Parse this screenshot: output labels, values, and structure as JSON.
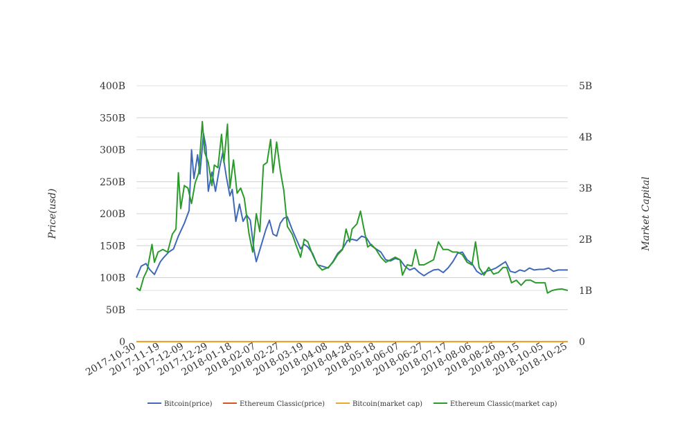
{
  "chart_data": {
    "type": "line",
    "ylabel_left": "Price(usd)",
    "ylabel_right": "Market Capital",
    "x_ticks": [
      "2017-10-30",
      "2017-11-19",
      "2017-12-09",
      "2017-12-29",
      "2018-01-18",
      "2018-02-07",
      "2018-02-27",
      "2018-03-19",
      "2018-04-08",
      "2018-04-28",
      "2018-05-18",
      "2018-06-07",
      "2018-06-27",
      "2018-07-17",
      "2018-08-06",
      "2018-08-26",
      "2018-09-15",
      "2018-10-05",
      "2018-10-25"
    ],
    "x_range": [
      "2017-10-30",
      "2018-10-25"
    ],
    "y_left_ticks": [
      "0",
      "50B",
      "100B",
      "150B",
      "200B",
      "250B",
      "300B",
      "350B",
      "400B"
    ],
    "y_left_range": [
      0,
      400
    ],
    "y_right_ticks": [
      "0",
      "1B",
      "2B",
      "3B",
      "4B",
      "5B"
    ],
    "y_right_range": [
      0,
      5
    ],
    "grid": true,
    "legend_position": "bottom",
    "series": [
      {
        "name": "Bitcoin(price)",
        "axis": "left",
        "color": "#3f69b8",
        "points": [
          [
            "2017-10-30",
            100
          ],
          [
            "2017-11-03",
            118
          ],
          [
            "2017-11-07",
            122
          ],
          [
            "2017-11-10",
            113
          ],
          [
            "2017-11-14",
            105
          ],
          [
            "2017-11-19",
            125
          ],
          [
            "2017-11-22",
            132
          ],
          [
            "2017-11-26",
            140
          ],
          [
            "2017-11-30",
            145
          ],
          [
            "2017-12-04",
            165
          ],
          [
            "2017-12-09",
            185
          ],
          [
            "2017-12-13",
            205
          ],
          [
            "2017-12-15",
            300
          ],
          [
            "2017-12-17",
            255
          ],
          [
            "2017-12-20",
            292
          ],
          [
            "2017-12-22",
            262
          ],
          [
            "2017-12-25",
            325
          ],
          [
            "2017-12-27",
            305
          ],
          [
            "2017-12-29",
            235
          ],
          [
            "2018-01-01",
            265
          ],
          [
            "2018-01-04",
            235
          ],
          [
            "2018-01-07",
            268
          ],
          [
            "2018-01-10",
            295
          ],
          [
            "2018-01-13",
            258
          ],
          [
            "2018-01-16",
            228
          ],
          [
            "2018-01-18",
            238
          ],
          [
            "2018-01-21",
            188
          ],
          [
            "2018-01-24",
            215
          ],
          [
            "2018-01-27",
            188
          ],
          [
            "2018-01-30",
            198
          ],
          [
            "2018-02-02",
            190
          ],
          [
            "2018-02-05",
            145
          ],
          [
            "2018-02-07",
            125
          ],
          [
            "2018-02-11",
            150
          ],
          [
            "2018-02-15",
            175
          ],
          [
            "2018-02-18",
            190
          ],
          [
            "2018-02-21",
            168
          ],
          [
            "2018-02-24",
            165
          ],
          [
            "2018-02-27",
            185
          ],
          [
            "2018-03-02",
            193
          ],
          [
            "2018-03-05",
            195
          ],
          [
            "2018-03-09",
            175
          ],
          [
            "2018-03-12",
            162
          ],
          [
            "2018-03-16",
            145
          ],
          [
            "2018-03-19",
            152
          ],
          [
            "2018-03-22",
            148
          ],
          [
            "2018-03-26",
            138
          ],
          [
            "2018-03-30",
            120
          ],
          [
            "2018-04-03",
            118
          ],
          [
            "2018-04-08",
            115
          ],
          [
            "2018-04-12",
            125
          ],
          [
            "2018-04-16",
            138
          ],
          [
            "2018-04-20",
            145
          ],
          [
            "2018-04-24",
            158
          ],
          [
            "2018-04-28",
            160
          ],
          [
            "2018-05-02",
            158
          ],
          [
            "2018-05-06",
            165
          ],
          [
            "2018-05-10",
            162
          ],
          [
            "2018-05-14",
            150
          ],
          [
            "2018-05-18",
            145
          ],
          [
            "2018-05-22",
            140
          ],
          [
            "2018-05-26",
            128
          ],
          [
            "2018-05-30",
            126
          ],
          [
            "2018-06-03",
            130
          ],
          [
            "2018-06-07",
            128
          ],
          [
            "2018-06-11",
            118
          ],
          [
            "2018-06-15",
            112
          ],
          [
            "2018-06-19",
            115
          ],
          [
            "2018-06-23",
            108
          ],
          [
            "2018-06-27",
            103
          ],
          [
            "2018-07-01",
            108
          ],
          [
            "2018-07-05",
            112
          ],
          [
            "2018-07-09",
            113
          ],
          [
            "2018-07-13",
            108
          ],
          [
            "2018-07-17",
            115
          ],
          [
            "2018-07-21",
            125
          ],
          [
            "2018-07-25",
            138
          ],
          [
            "2018-07-29",
            140
          ],
          [
            "2018-08-02",
            128
          ],
          [
            "2018-08-06",
            122
          ],
          [
            "2018-08-10",
            110
          ],
          [
            "2018-08-14",
            105
          ],
          [
            "2018-08-18",
            110
          ],
          [
            "2018-08-22",
            112
          ],
          [
            "2018-08-26",
            115
          ],
          [
            "2018-08-30",
            120
          ],
          [
            "2018-09-03",
            125
          ],
          [
            "2018-09-07",
            110
          ],
          [
            "2018-09-11",
            108
          ],
          [
            "2018-09-15",
            112
          ],
          [
            "2018-09-19",
            110
          ],
          [
            "2018-09-23",
            115
          ],
          [
            "2018-09-27",
            112
          ],
          [
            "2018-10-01",
            113
          ],
          [
            "2018-10-05",
            113
          ],
          [
            "2018-10-09",
            115
          ],
          [
            "2018-10-13",
            110
          ],
          [
            "2018-10-17",
            112
          ],
          [
            "2018-10-21",
            112
          ],
          [
            "2018-10-25",
            112
          ]
        ]
      },
      {
        "name": "Ethereum Classic(price)",
        "axis": "left",
        "color": "#d9531e",
        "points": [
          [
            "2017-10-30",
            0.02
          ],
          [
            "2018-10-25",
            0.01
          ]
        ]
      },
      {
        "name": "Bitcoin(market cap)",
        "axis": "right",
        "color": "#e8a92b",
        "points": [
          [
            "2017-10-30",
            0.001
          ],
          [
            "2018-10-25",
            0.001
          ]
        ]
      },
      {
        "name": "Ethereum Classic(market cap)",
        "axis": "right",
        "color": "#2a9a2a",
        "points": [
          [
            "2017-10-30",
            1.05
          ],
          [
            "2017-11-02",
            1.0
          ],
          [
            "2017-11-05",
            1.25
          ],
          [
            "2017-11-08",
            1.4
          ],
          [
            "2017-11-12",
            1.9
          ],
          [
            "2017-11-14",
            1.55
          ],
          [
            "2017-11-17",
            1.75
          ],
          [
            "2017-11-21",
            1.8
          ],
          [
            "2017-11-25",
            1.75
          ],
          [
            "2017-11-29",
            2.1
          ],
          [
            "2017-12-02",
            2.2
          ],
          [
            "2017-12-04",
            3.3
          ],
          [
            "2017-12-06",
            2.6
          ],
          [
            "2017-12-09",
            3.05
          ],
          [
            "2017-12-12",
            3.0
          ],
          [
            "2017-12-15",
            2.7
          ],
          [
            "2017-12-18",
            3.1
          ],
          [
            "2017-12-21",
            3.3
          ],
          [
            "2017-12-24",
            4.3
          ],
          [
            "2017-12-26",
            3.7
          ],
          [
            "2017-12-29",
            3.5
          ],
          [
            "2018-01-01",
            3.05
          ],
          [
            "2018-01-03",
            3.45
          ],
          [
            "2018-01-06",
            3.4
          ],
          [
            "2018-01-09",
            4.05
          ],
          [
            "2018-01-11",
            3.5
          ],
          [
            "2018-01-14",
            4.25
          ],
          [
            "2018-01-16",
            3.0
          ],
          [
            "2018-01-19",
            3.55
          ],
          [
            "2018-01-22",
            2.9
          ],
          [
            "2018-01-25",
            3.0
          ],
          [
            "2018-01-28",
            2.8
          ],
          [
            "2018-02-01",
            2.1
          ],
          [
            "2018-02-04",
            1.75
          ],
          [
            "2018-02-07",
            2.5
          ],
          [
            "2018-02-10",
            2.15
          ],
          [
            "2018-02-13",
            3.45
          ],
          [
            "2018-02-16",
            3.5
          ],
          [
            "2018-02-19",
            3.95
          ],
          [
            "2018-02-21",
            3.3
          ],
          [
            "2018-02-24",
            3.9
          ],
          [
            "2018-02-27",
            3.35
          ],
          [
            "2018-03-02",
            2.95
          ],
          [
            "2018-03-05",
            2.25
          ],
          [
            "2018-03-09",
            2.1
          ],
          [
            "2018-03-12",
            1.9
          ],
          [
            "2018-03-16",
            1.65
          ],
          [
            "2018-03-19",
            2.0
          ],
          [
            "2018-03-22",
            1.95
          ],
          [
            "2018-03-26",
            1.7
          ],
          [
            "2018-03-30",
            1.5
          ],
          [
            "2018-04-03",
            1.4
          ],
          [
            "2018-04-08",
            1.45
          ],
          [
            "2018-04-12",
            1.55
          ],
          [
            "2018-04-16",
            1.7
          ],
          [
            "2018-04-20",
            1.8
          ],
          [
            "2018-04-23",
            2.2
          ],
          [
            "2018-04-26",
            1.95
          ],
          [
            "2018-04-28",
            2.2
          ],
          [
            "2018-05-02",
            2.3
          ],
          [
            "2018-05-05",
            2.55
          ],
          [
            "2018-05-07",
            2.3
          ],
          [
            "2018-05-11",
            1.85
          ],
          [
            "2018-05-14",
            1.9
          ],
          [
            "2018-05-18",
            1.8
          ],
          [
            "2018-05-22",
            1.65
          ],
          [
            "2018-05-26",
            1.55
          ],
          [
            "2018-05-30",
            1.6
          ],
          [
            "2018-06-03",
            1.65
          ],
          [
            "2018-06-07",
            1.6
          ],
          [
            "2018-06-09",
            1.3
          ],
          [
            "2018-06-13",
            1.5
          ],
          [
            "2018-06-17",
            1.48
          ],
          [
            "2018-06-20",
            1.8
          ],
          [
            "2018-06-23",
            1.5
          ],
          [
            "2018-06-27",
            1.5
          ],
          [
            "2018-07-01",
            1.55
          ],
          [
            "2018-07-05",
            1.6
          ],
          [
            "2018-07-09",
            1.95
          ],
          [
            "2018-07-13",
            1.8
          ],
          [
            "2018-07-17",
            1.8
          ],
          [
            "2018-07-21",
            1.75
          ],
          [
            "2018-07-25",
            1.75
          ],
          [
            "2018-07-29",
            1.7
          ],
          [
            "2018-08-02",
            1.55
          ],
          [
            "2018-08-06",
            1.5
          ],
          [
            "2018-08-09",
            1.95
          ],
          [
            "2018-08-12",
            1.45
          ],
          [
            "2018-08-16",
            1.3
          ],
          [
            "2018-08-20",
            1.45
          ],
          [
            "2018-08-24",
            1.32
          ],
          [
            "2018-08-28",
            1.35
          ],
          [
            "2018-09-01",
            1.45
          ],
          [
            "2018-09-04",
            1.45
          ],
          [
            "2018-09-08",
            1.15
          ],
          [
            "2018-09-12",
            1.2
          ],
          [
            "2018-09-16",
            1.1
          ],
          [
            "2018-09-20",
            1.2
          ],
          [
            "2018-09-24",
            1.2
          ],
          [
            "2018-09-28",
            1.15
          ],
          [
            "2018-10-02",
            1.15
          ],
          [
            "2018-10-06",
            1.15
          ],
          [
            "2018-10-08",
            0.95
          ],
          [
            "2018-10-12",
            1.0
          ],
          [
            "2018-10-16",
            1.02
          ],
          [
            "2018-10-20",
            1.03
          ],
          [
            "2018-10-25",
            1.0
          ]
        ]
      }
    ]
  }
}
